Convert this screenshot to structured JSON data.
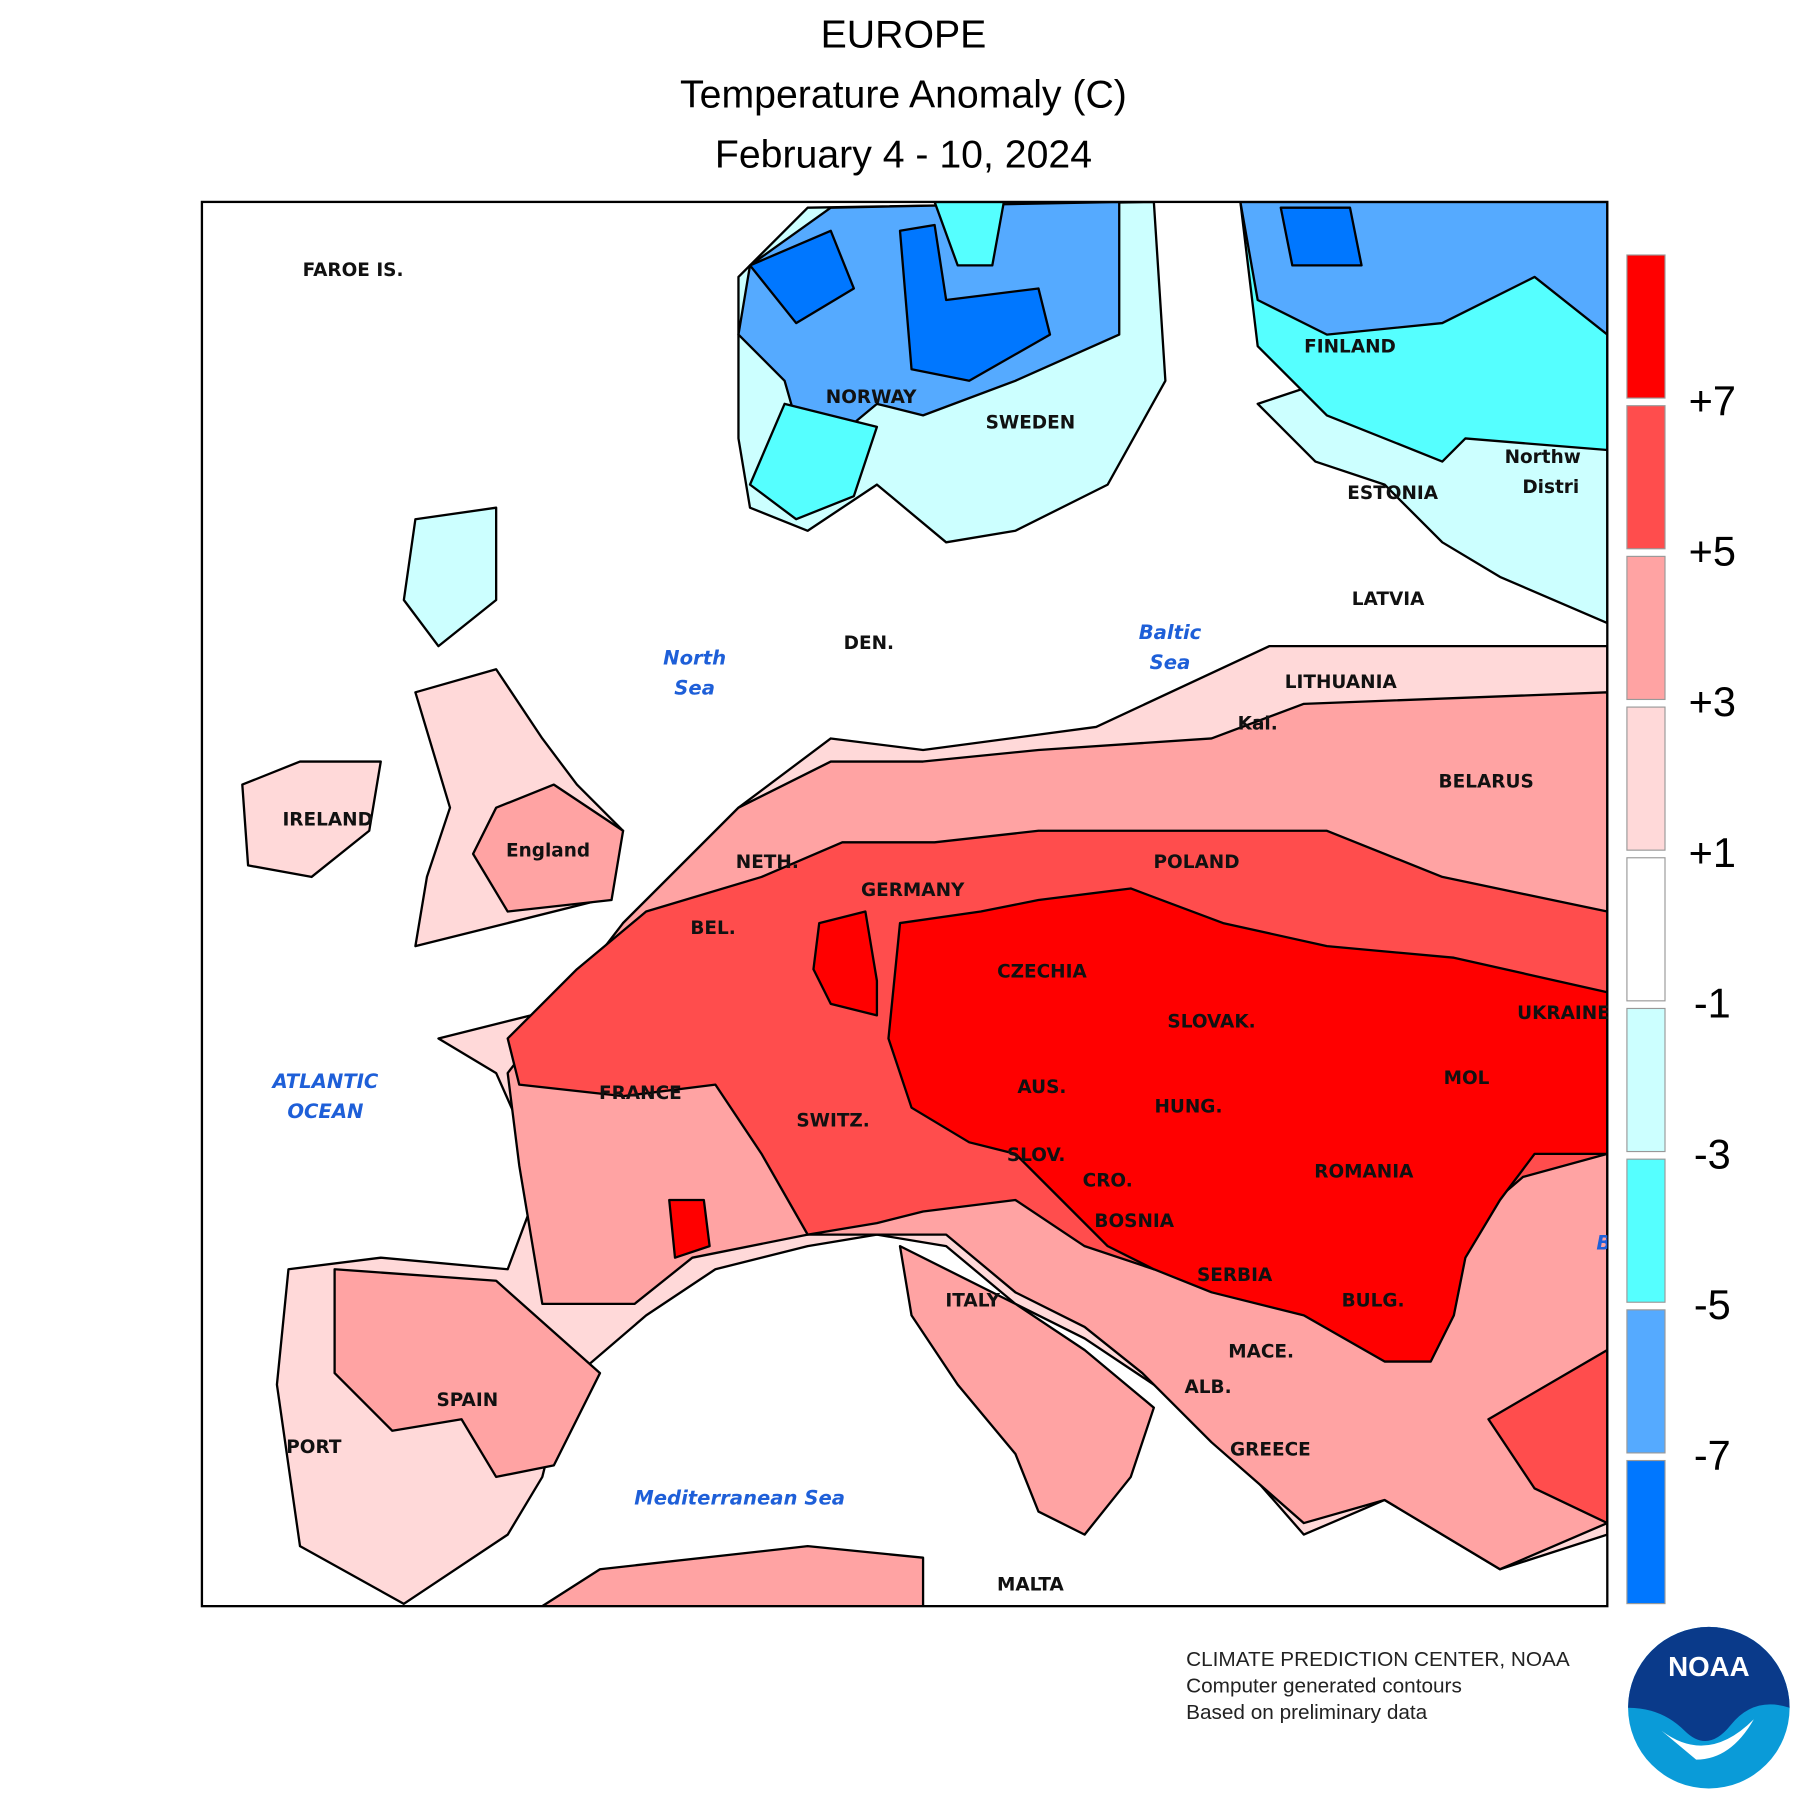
{
  "header": {
    "title": "EUROPE",
    "subtitle": "Temperature Anomaly (C)",
    "period": "February 4 - 10, 2024"
  },
  "map": {
    "country_labels": [
      "FAROE IS.",
      "NORWAY",
      "SWEDEN",
      "FINLAND",
      "ESTONIA",
      "LATVIA",
      "LITHUANIA",
      "Kal.",
      "BELARUS",
      "POLAND",
      "GERMANY",
      "NETH.",
      "BEL.",
      "CZECHIA",
      "SLOVAK.",
      "UKRAINE",
      "MOL",
      "AUS.",
      "HUNG.",
      "ROMANIA",
      "FRANCE",
      "SWITZ.",
      "SLOV.",
      "CRO.",
      "BOSNIA",
      "SERBIA",
      "BULG.",
      "MACE.",
      "ALB.",
      "GREECE",
      "ITALY",
      "SPAIN",
      "PORT",
      "MALTA",
      "IRELAND",
      "England",
      "DEN.",
      "Northw",
      "Distri"
    ],
    "sea_labels": [
      "North",
      "Sea",
      "Baltic",
      "Sea",
      "ATLANTIC",
      "OCEAN",
      "Mediterranean Sea",
      "B"
    ]
  },
  "legend": {
    "colors": [
      "#ff0000",
      "#ff4d4d",
      "#ffa3a3",
      "#ffd9d9",
      "#ffffff",
      "#ccffff",
      "#55ffff",
      "#55aaff",
      "#0077ff"
    ],
    "labels": [
      "+7",
      "+5",
      "+3",
      "+1",
      "-1",
      "-3",
      "-5",
      "-7"
    ]
  },
  "credits": [
    "CLIMATE PREDICTION CENTER, NOAA",
    "Computer generated contours",
    "Based on preliminary data"
  ],
  "logo": "NOAA"
}
